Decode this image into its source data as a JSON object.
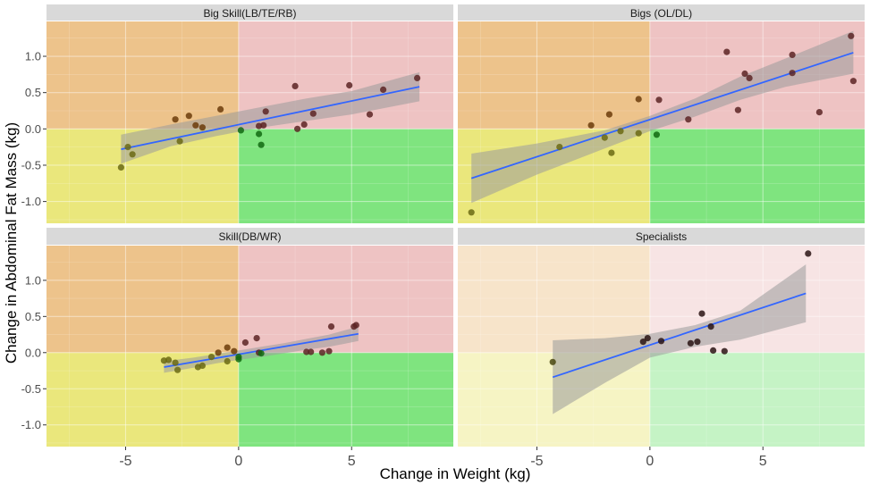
{
  "chart_data": {
    "type": "scatter",
    "xlabel": "Change in Weight (kg)",
    "ylabel": "Change in Abdominal Fat Mass (kg)",
    "xlim": [
      -8.5,
      9.5
    ],
    "ylim": [
      -1.3,
      1.48
    ],
    "x_ticks": [
      -5,
      0,
      5
    ],
    "y_ticks": [
      -1.0,
      -0.5,
      0.0,
      0.5,
      1.0
    ],
    "x_tick_labels": [
      "-5",
      "0",
      "5"
    ],
    "y_tick_labels": [
      "-1.0",
      "-0.5",
      "0.0",
      "0.5",
      "1.0"
    ],
    "grid": true,
    "quadrant_colors": {
      "top_left": "#edc38b",
      "top_right": "#eec3c3",
      "bottom_left": "#eae77c",
      "bottom_right": "#7fe47f"
    },
    "fit_line_color": "#3366ff",
    "confidence_band_color": "#9a9a9a",
    "strip_color": "#d9d9d9",
    "facets": [
      {
        "title": "Big Skill(LB/TE/RB)",
        "faded": false,
        "fit": {
          "x": [
            -5.2,
            8.0
          ],
          "y": [
            -0.28,
            0.58
          ]
        },
        "band": {
          "x": [
            -5.2,
            -3.0,
            -1.0,
            1.0,
            3.0,
            5.0,
            8.0
          ],
          "upper": [
            -0.08,
            0.06,
            0.18,
            0.3,
            0.42,
            0.52,
            0.78
          ],
          "lower": [
            -0.48,
            -0.24,
            -0.1,
            0.02,
            0.11,
            0.2,
            0.38
          ]
        },
        "points": [
          {
            "x": -5.2,
            "y": -0.53
          },
          {
            "x": -4.9,
            "y": -0.25
          },
          {
            "x": -4.7,
            "y": -0.35
          },
          {
            "x": -2.8,
            "y": 0.13
          },
          {
            "x": -2.6,
            "y": -0.17
          },
          {
            "x": -2.2,
            "y": 0.18
          },
          {
            "x": -1.9,
            "y": 0.05
          },
          {
            "x": -1.6,
            "y": 0.02
          },
          {
            "x": -0.8,
            "y": 0.27
          },
          {
            "x": 0.1,
            "y": -0.02
          },
          {
            "x": 0.9,
            "y": 0.04
          },
          {
            "x": 0.9,
            "y": -0.07
          },
          {
            "x": 1.0,
            "y": -0.22
          },
          {
            "x": 1.1,
            "y": 0.05
          },
          {
            "x": 1.2,
            "y": 0.24
          },
          {
            "x": 2.5,
            "y": 0.59
          },
          {
            "x": 2.6,
            "y": 0.0
          },
          {
            "x": 2.9,
            "y": 0.06
          },
          {
            "x": 3.3,
            "y": 0.21
          },
          {
            "x": 4.9,
            "y": 0.6
          },
          {
            "x": 5.8,
            "y": 0.2
          },
          {
            "x": 6.4,
            "y": 0.54
          },
          {
            "x": 7.9,
            "y": 0.7
          }
        ]
      },
      {
        "title": "Bigs (OL/DL)",
        "faded": false,
        "fit": {
          "x": [
            -7.9,
            9.0
          ],
          "y": [
            -0.68,
            1.05
          ]
        },
        "band": {
          "x": [
            -7.9,
            -5.0,
            -2.0,
            0.0,
            2.0,
            4.0,
            6.0,
            9.0
          ],
          "upper": [
            -0.34,
            -0.2,
            -0.02,
            0.18,
            0.42,
            0.72,
            0.97,
            1.35
          ],
          "lower": [
            -1.02,
            -0.63,
            -0.27,
            -0.03,
            0.17,
            0.4,
            0.58,
            0.76
          ]
        },
        "points": [
          {
            "x": -7.9,
            "y": -1.15
          },
          {
            "x": -4.0,
            "y": -0.25
          },
          {
            "x": -2.6,
            "y": 0.05
          },
          {
            "x": -2.0,
            "y": -0.12
          },
          {
            "x": -1.8,
            "y": 0.2
          },
          {
            "x": -1.7,
            "y": -0.33
          },
          {
            "x": -1.3,
            "y": -0.03
          },
          {
            "x": -0.5,
            "y": 0.41
          },
          {
            "x": -0.5,
            "y": -0.06
          },
          {
            "x": 0.3,
            "y": -0.08
          },
          {
            "x": 0.4,
            "y": 0.4
          },
          {
            "x": 1.7,
            "y": 0.13
          },
          {
            "x": 3.4,
            "y": 1.06
          },
          {
            "x": 3.9,
            "y": 0.26
          },
          {
            "x": 4.2,
            "y": 0.76
          },
          {
            "x": 4.4,
            "y": 0.7
          },
          {
            "x": 6.3,
            "y": 1.02
          },
          {
            "x": 6.3,
            "y": 0.77
          },
          {
            "x": 7.5,
            "y": 0.23
          },
          {
            "x": 8.9,
            "y": 1.28
          },
          {
            "x": 9.0,
            "y": 0.66
          }
        ]
      },
      {
        "title": "Skill(DB/WR)",
        "faded": false,
        "fit": {
          "x": [
            -3.3,
            5.3
          ],
          "y": [
            -0.2,
            0.26
          ]
        },
        "band": {
          "x": [
            -3.3,
            -2.0,
            -1.0,
            0.0,
            1.0,
            2.0,
            3.0,
            4.0,
            5.3
          ],
          "upper": [
            -0.12,
            -0.07,
            -0.02,
            0.03,
            0.08,
            0.13,
            0.19,
            0.25,
            0.36
          ],
          "lower": [
            -0.28,
            -0.21,
            -0.15,
            -0.1,
            -0.06,
            -0.01,
            0.04,
            0.08,
            0.16
          ]
        },
        "points": [
          {
            "x": -3.3,
            "y": -0.11
          },
          {
            "x": -3.1,
            "y": -0.1
          },
          {
            "x": -2.8,
            "y": -0.14
          },
          {
            "x": -2.7,
            "y": -0.24
          },
          {
            "x": -1.8,
            "y": -0.2
          },
          {
            "x": -1.6,
            "y": -0.18
          },
          {
            "x": -1.2,
            "y": -0.06
          },
          {
            "x": -0.9,
            "y": 0.0
          },
          {
            "x": -0.5,
            "y": -0.12
          },
          {
            "x": -0.5,
            "y": 0.07
          },
          {
            "x": -0.2,
            "y": 0.02
          },
          {
            "x": 0.0,
            "y": -0.06
          },
          {
            "x": 0.0,
            "y": -0.09
          },
          {
            "x": 0.3,
            "y": 0.14
          },
          {
            "x": 0.8,
            "y": 0.2
          },
          {
            "x": 0.9,
            "y": 0.0
          },
          {
            "x": 1.0,
            "y": -0.01
          },
          {
            "x": 3.0,
            "y": 0.01
          },
          {
            "x": 3.2,
            "y": 0.01
          },
          {
            "x": 3.7,
            "y": 0.0
          },
          {
            "x": 4.0,
            "y": 0.02
          },
          {
            "x": 4.1,
            "y": 0.36
          },
          {
            "x": 5.1,
            "y": 0.36
          },
          {
            "x": 5.2,
            "y": 0.38
          }
        ]
      },
      {
        "title": "Specialists",
        "faded": true,
        "fit": {
          "x": [
            -4.3,
            6.9
          ],
          "y": [
            -0.34,
            0.82
          ]
        },
        "band": {
          "x": [
            -4.3,
            -2.0,
            0.0,
            2.0,
            4.0,
            6.9
          ],
          "upper": [
            0.17,
            0.2,
            0.26,
            0.38,
            0.58,
            1.22
          ],
          "lower": [
            -0.85,
            -0.42,
            -0.07,
            0.08,
            0.18,
            0.42
          ]
        },
        "points": [
          {
            "x": -4.3,
            "y": -0.13
          },
          {
            "x": -0.3,
            "y": 0.15
          },
          {
            "x": -0.1,
            "y": 0.2
          },
          {
            "x": 0.5,
            "y": 0.16
          },
          {
            "x": 1.8,
            "y": 0.13
          },
          {
            "x": 2.1,
            "y": 0.15
          },
          {
            "x": 2.3,
            "y": 0.54
          },
          {
            "x": 2.7,
            "y": 0.36
          },
          {
            "x": 2.8,
            "y": 0.03
          },
          {
            "x": 3.3,
            "y": 0.02
          },
          {
            "x": 7.0,
            "y": 1.37
          }
        ]
      }
    ]
  }
}
